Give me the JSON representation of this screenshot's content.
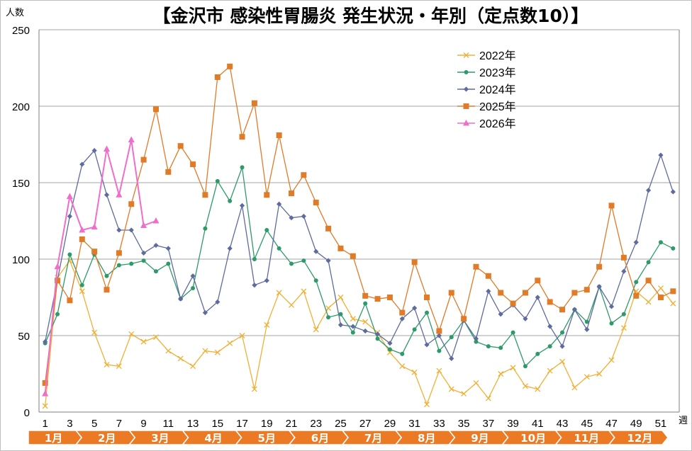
{
  "chart_data": {
    "type": "line",
    "title": "【金沢市  感染性胃腸炎  発生状況・年別（定点数10）】",
    "ylabel": "人数",
    "xlabel": "週",
    "ylim": [
      0,
      250
    ],
    "yticks": [
      0,
      50,
      100,
      150,
      200,
      250
    ],
    "xticks": [
      1,
      3,
      5,
      7,
      9,
      11,
      13,
      15,
      17,
      19,
      21,
      23,
      25,
      27,
      29,
      31,
      33,
      35,
      37,
      39,
      41,
      43,
      45,
      47,
      49,
      51
    ],
    "grid": true,
    "legend_position": "top-right",
    "months": [
      "1月",
      "2月",
      "3月",
      "4月",
      "5月",
      "6月",
      "7月",
      "8月",
      "9月",
      "10月",
      "11月",
      "12月"
    ],
    "series": [
      {
        "name": "2022年",
        "color": "#f0b035",
        "marker": "x",
        "x_start": 1,
        "values": [
          4,
          88,
          99,
          79,
          52,
          31,
          30,
          51,
          46,
          49,
          40,
          35,
          30,
          40,
          39,
          45,
          50,
          15,
          57,
          78,
          70,
          79,
          54,
          68,
          75,
          61,
          59,
          52,
          39,
          30,
          26,
          5,
          27,
          15,
          12,
          19,
          9,
          25,
          29,
          17,
          15,
          27,
          33,
          16,
          23,
          25,
          34,
          55,
          79,
          72,
          81,
          71
        ]
      },
      {
        "name": "2023年",
        "color": "#2e9a6a",
        "marker": "circle",
        "x_start": 1,
        "values": [
          45,
          64,
          103,
          83,
          103,
          89,
          96,
          97,
          99,
          92,
          97,
          74,
          81,
          120,
          151,
          138,
          160,
          100,
          119,
          107,
          97,
          99,
          86,
          62,
          64,
          52,
          71,
          48,
          41,
          38,
          54,
          65,
          40,
          49,
          60,
          46,
          43,
          42,
          52,
          30,
          38,
          43,
          52,
          67,
          59,
          82,
          58,
          64,
          85,
          98,
          111,
          107
        ]
      },
      {
        "name": "2024年",
        "color": "#5f6b9e",
        "marker": "diamond",
        "x_start": 1,
        "values": [
          46,
          86,
          128,
          162,
          171,
          142,
          119,
          119,
          104,
          109,
          107,
          74,
          89,
          65,
          72,
          107,
          135,
          83,
          86,
          136,
          127,
          128,
          105,
          99,
          57,
          56,
          53,
          51,
          45,
          61,
          68,
          44,
          50,
          35,
          60,
          48,
          79,
          64,
          70,
          61,
          75,
          56,
          43,
          67,
          54,
          82,
          69,
          92,
          111,
          145,
          168,
          144
        ]
      },
      {
        "name": "2025年",
        "color": "#e07b28",
        "marker": "square",
        "x_start": 1,
        "values": [
          19,
          86,
          73,
          113,
          105,
          80,
          104,
          136,
          165,
          198,
          157,
          174,
          162,
          142,
          219,
          226,
          180,
          202,
          142,
          181,
          143,
          155,
          137,
          120,
          107,
          102,
          76,
          74,
          75,
          65,
          98,
          75,
          53,
          78,
          61,
          95,
          89,
          78,
          71,
          78,
          86,
          72,
          67,
          78,
          80,
          95,
          135,
          101,
          76,
          86,
          75,
          79
        ]
      },
      {
        "name": "2026年",
        "color": "#f06ecb",
        "marker": "triangle",
        "x_start": 1,
        "values": [
          12,
          95,
          141,
          119,
          121,
          172,
          142,
          178,
          122,
          125
        ]
      }
    ]
  }
}
